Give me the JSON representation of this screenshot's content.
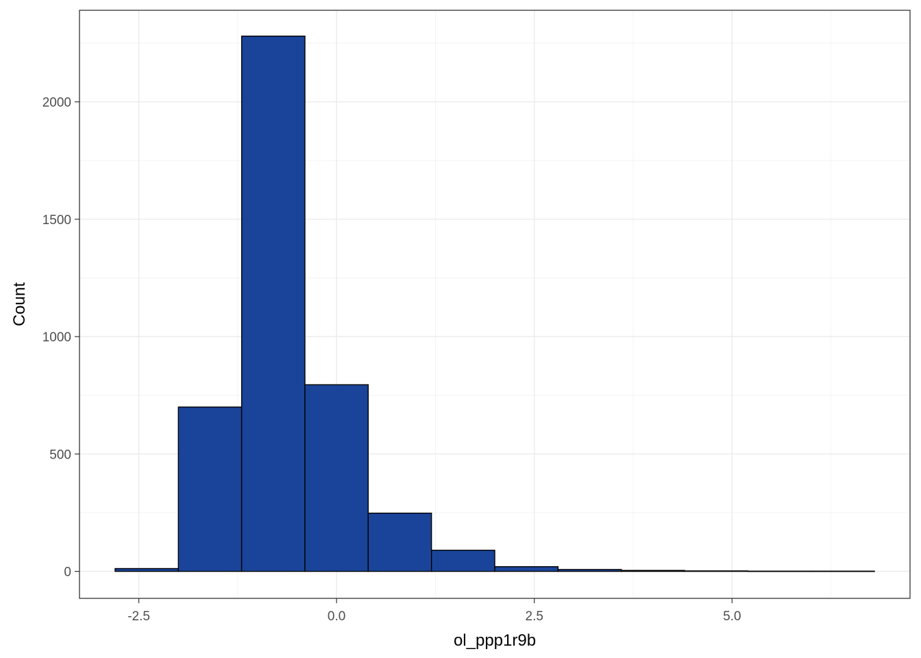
{
  "chart_data": {
    "type": "bar",
    "subtype": "histogram",
    "title": "",
    "xlabel": "ol_ppp1r9b",
    "ylabel": "Count",
    "bin_edges": [
      -2.8,
      -2.0,
      -1.2,
      -0.4,
      0.4,
      1.2,
      2.0,
      2.8,
      3.6,
      4.4,
      5.2,
      6.0,
      6.8
    ],
    "values": [
      12,
      700,
      2280,
      795,
      248,
      90,
      20,
      8,
      4,
      2,
      1,
      1
    ],
    "xlim": [
      -3.25,
      7.25
    ],
    "ylim": [
      -115,
      2390
    ],
    "x_ticks": [
      -2.5,
      0.0,
      2.5,
      5.0
    ],
    "x_tick_labels": [
      "-2.5",
      "0.0",
      "2.5",
      "5.0"
    ],
    "y_ticks": [
      0,
      500,
      1000,
      1500,
      2000
    ],
    "y_tick_labels": [
      "0",
      "500",
      "1000",
      "1500",
      "2000"
    ],
    "x_minor_ticks": [
      -1.25,
      1.25,
      3.75,
      6.25
    ],
    "y_minor_ticks": [
      250,
      750,
      1250,
      1750,
      2250
    ],
    "grid": true,
    "legend": "none",
    "bar_fill": "#1a4499",
    "bar_outline": "#000000"
  }
}
